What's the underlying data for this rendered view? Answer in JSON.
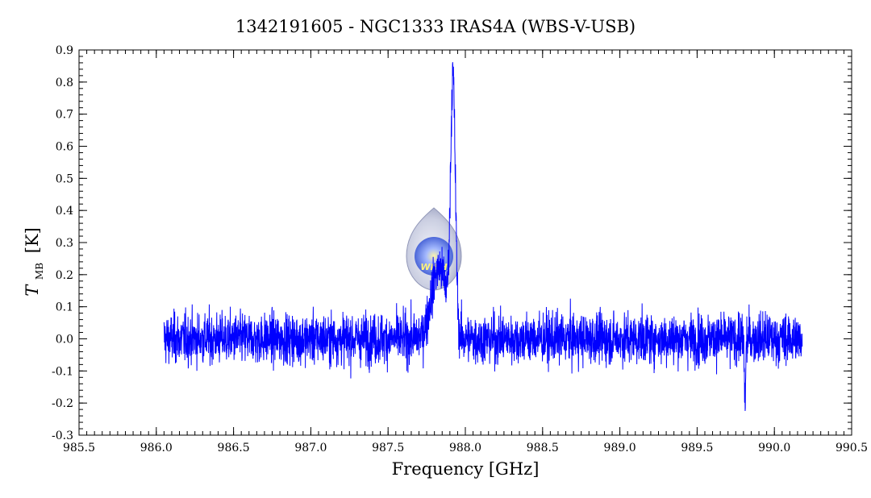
{
  "chart_data": {
    "type": "line",
    "title": "1342191605 - NGC1333 IRAS4A (WBS-V-USB)",
    "xlabel": "Frequency [GHz]",
    "ylabel_main": "T",
    "ylabel_sub": "MB",
    "ylabel_unit": "[K]",
    "xlim": [
      985.5,
      990.5
    ],
    "ylim": [
      -0.3,
      0.9
    ],
    "x_ticks": [
      985.5,
      986.0,
      986.5,
      987.0,
      987.5,
      988.0,
      988.5,
      989.0,
      989.5,
      990.0,
      990.5
    ],
    "x_tick_labels": [
      "985.5",
      "986.0",
      "986.5",
      "987.0",
      "987.5",
      "988.0",
      "988.5",
      "989.0",
      "989.5",
      "990.0",
      "990.5"
    ],
    "y_ticks": [
      -0.3,
      -0.2,
      -0.1,
      0.0,
      0.1,
      0.2,
      0.3,
      0.4,
      0.5,
      0.6,
      0.7,
      0.8,
      0.9
    ],
    "y_tick_labels": [
      "-0.3",
      "-0.2",
      "-0.1",
      "0.0",
      "0.1",
      "0.2",
      "0.3",
      "0.4",
      "0.5",
      "0.6",
      "0.7",
      "0.8",
      "0.9"
    ],
    "series": [
      {
        "color": "#0000ff",
        "x_range": [
          986.05,
          990.18
        ],
        "noise_rms": 0.05,
        "peaks": [
          {
            "x": 987.92,
            "y": 0.78
          },
          {
            "x": 987.83,
            "y": 0.3
          }
        ],
        "dips": [
          {
            "x": 989.81,
            "y": -0.25
          }
        ]
      }
    ],
    "logo": {
      "text": "WISH"
    },
    "grid": false,
    "legend": "none"
  }
}
